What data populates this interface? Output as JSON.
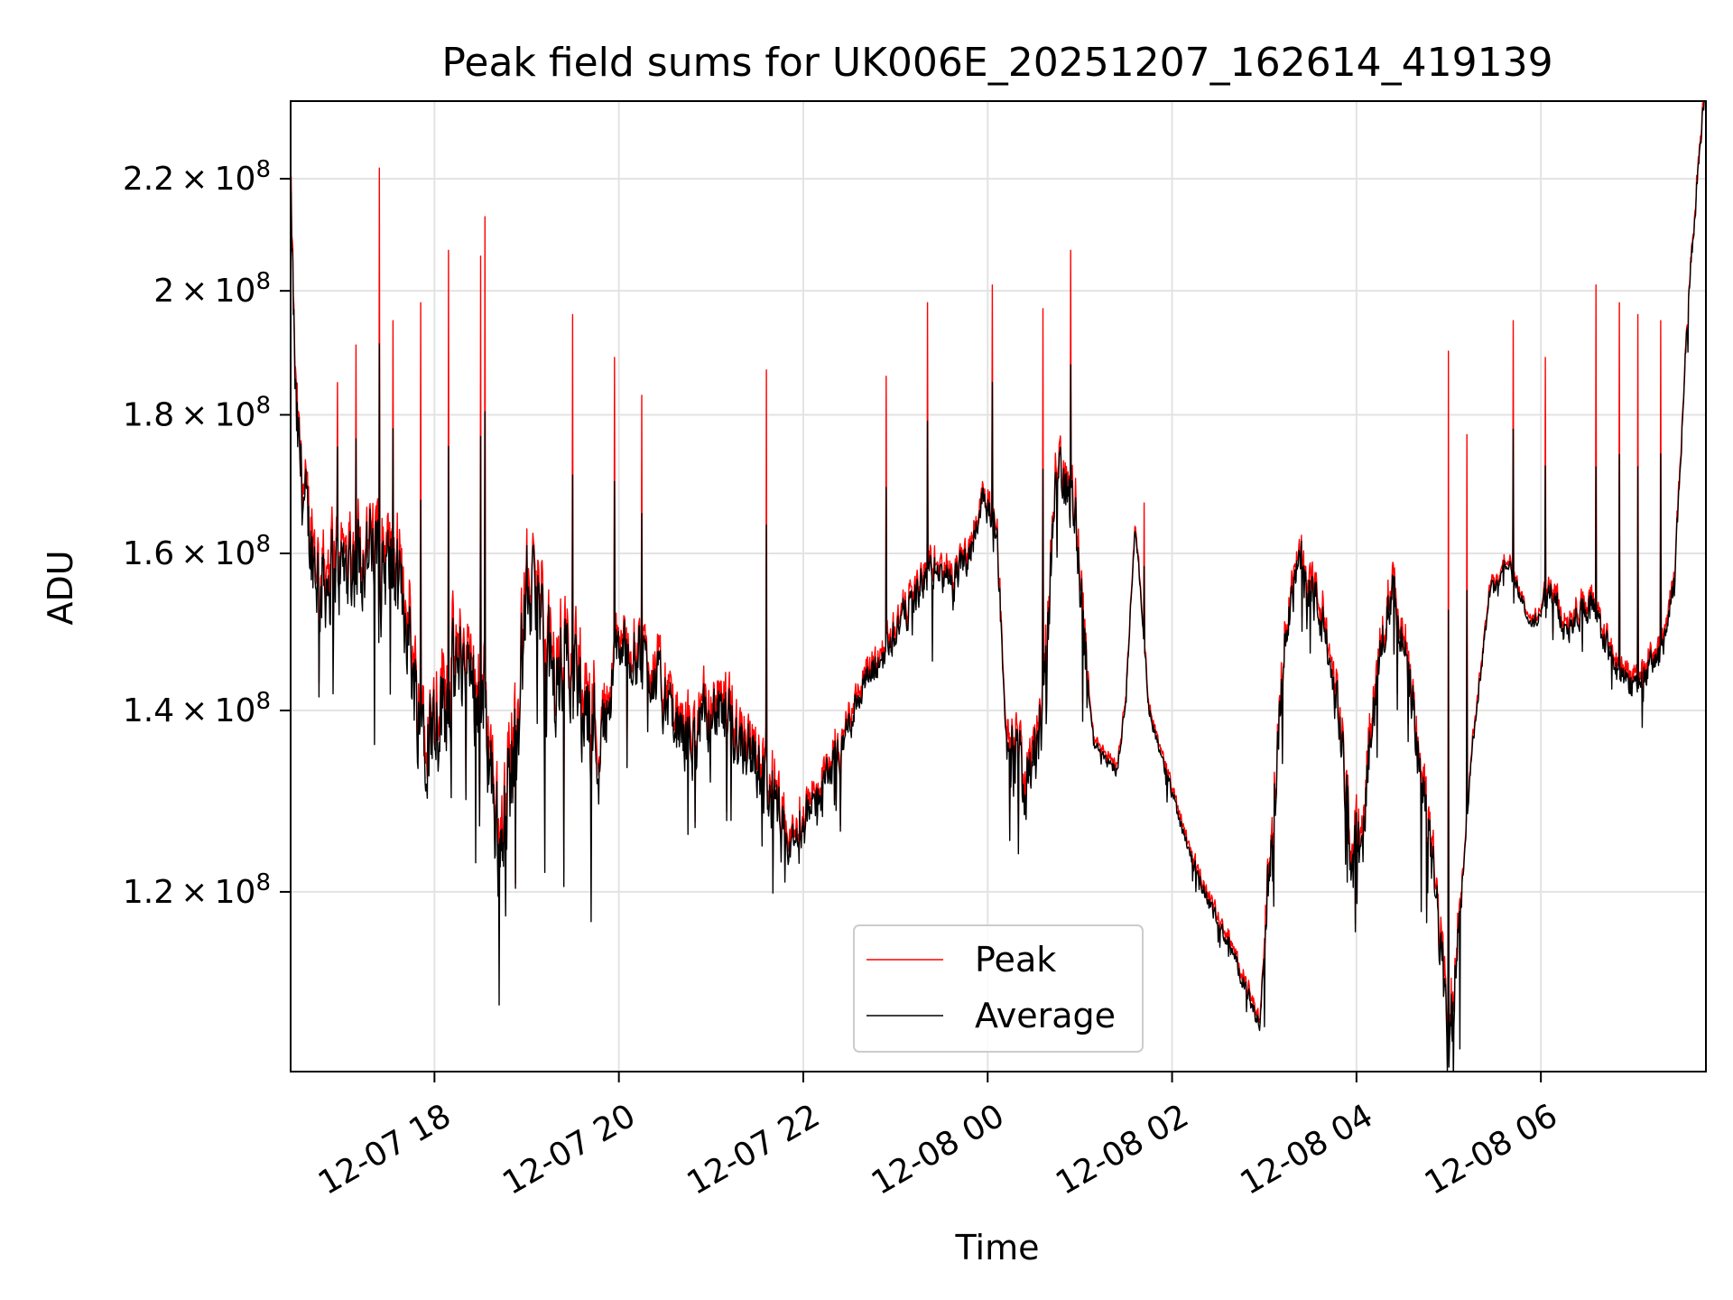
{
  "chart_data": {
    "type": "line",
    "title": "Peak field sums for UK006E_20251207_162614_419139",
    "xlabel": "Time",
    "ylabel": "ADU",
    "yscale": "log",
    "ylim": [
      103000000,
      235000000
    ],
    "xlim_hours_from_2025_12_07_00": [
      16.44,
      31.79
    ],
    "grid": true,
    "legend_location": "lower center",
    "x_ticks": [
      {
        "hour": 18,
        "label": "12-07 18"
      },
      {
        "hour": 20,
        "label": "12-07 20"
      },
      {
        "hour": 22,
        "label": "12-07 22"
      },
      {
        "hour": 24,
        "label": "12-08 00"
      },
      {
        "hour": 26,
        "label": "12-08 02"
      },
      {
        "hour": 28,
        "label": "12-08 04"
      },
      {
        "hour": 30,
        "label": "12-08 06"
      }
    ],
    "y_ticks": [
      {
        "value": 120000000,
        "mantissa": "1.2",
        "base": "10",
        "exp": "8"
      },
      {
        "value": 140000000,
        "mantissa": "1.4",
        "base": "10",
        "exp": "8"
      },
      {
        "value": 160000000,
        "mantissa": "1.6",
        "base": "10",
        "exp": "8"
      },
      {
        "value": 180000000,
        "mantissa": "1.8",
        "base": "10",
        "exp": "8"
      },
      {
        "value": 200000000,
        "mantissa": "2",
        "base": "10",
        "exp": "8"
      },
      {
        "value": 220000000,
        "mantissa": "2.2",
        "base": "10",
        "exp": "8"
      }
    ],
    "series": [
      {
        "name": "Peak",
        "color": "#ff0000"
      },
      {
        "name": "Average",
        "color": "#000000"
      }
    ],
    "average_baseline_millions": [
      [
        16.44,
        215
      ],
      [
        16.5,
        178
      ],
      [
        16.6,
        165
      ],
      [
        16.75,
        156
      ],
      [
        17.0,
        158
      ],
      [
        17.25,
        160
      ],
      [
        17.5,
        158
      ],
      [
        17.7,
        152
      ],
      [
        17.8,
        141
      ],
      [
        17.95,
        138
      ],
      [
        18.1,
        141
      ],
      [
        18.3,
        146
      ],
      [
        18.55,
        140
      ],
      [
        18.7,
        124
      ],
      [
        18.9,
        138
      ],
      [
        19.0,
        155
      ],
      [
        19.15,
        152
      ],
      [
        19.3,
        142
      ],
      [
        19.45,
        148
      ],
      [
        19.6,
        141
      ],
      [
        19.8,
        136
      ],
      [
        19.9,
        142
      ],
      [
        20.0,
        148
      ],
      [
        20.25,
        146
      ],
      [
        20.4,
        144
      ],
      [
        20.6,
        138
      ],
      [
        20.8,
        136
      ],
      [
        21.0,
        140
      ],
      [
        21.2,
        138
      ],
      [
        21.4,
        136
      ],
      [
        21.6,
        132
      ],
      [
        21.8,
        124
      ],
      [
        21.95,
        126
      ],
      [
        22.15,
        130
      ],
      [
        22.4,
        135
      ],
      [
        22.6,
        142
      ],
      [
        22.8,
        145
      ],
      [
        23.0,
        150
      ],
      [
        23.2,
        154
      ],
      [
        23.4,
        158
      ],
      [
        23.6,
        156
      ],
      [
        23.8,
        160
      ],
      [
        23.95,
        168
      ],
      [
        24.1,
        163
      ],
      [
        24.2,
        135
      ],
      [
        24.4,
        133
      ],
      [
        24.6,
        138
      ],
      [
        24.75,
        172
      ],
      [
        24.95,
        166
      ],
      [
        25.05,
        148
      ],
      [
        25.15,
        136
      ],
      [
        25.4,
        133
      ],
      [
        25.5,
        141
      ],
      [
        25.6,
        164
      ],
      [
        25.75,
        140
      ],
      [
        25.9,
        134
      ],
      [
        26.1,
        127
      ],
      [
        26.3,
        121
      ],
      [
        26.5,
        117
      ],
      [
        26.7,
        113
      ],
      [
        26.9,
        108
      ],
      [
        26.95,
        107
      ],
      [
        27.1,
        128
      ],
      [
        27.25,
        152
      ],
      [
        27.4,
        159
      ],
      [
        27.6,
        152
      ],
      [
        27.8,
        140
      ],
      [
        27.95,
        123
      ],
      [
        28.1,
        131
      ],
      [
        28.25,
        148
      ],
      [
        28.4,
        155
      ],
      [
        28.6,
        141
      ],
      [
        28.75,
        128
      ],
      [
        28.9,
        116
      ],
      [
        29.0,
        104
      ],
      [
        29.1,
        115
      ],
      [
        29.25,
        135
      ],
      [
        29.45,
        155
      ],
      [
        29.65,
        159
      ],
      [
        29.9,
        150
      ],
      [
        30.1,
        155
      ],
      [
        30.25,
        150
      ],
      [
        30.4,
        152
      ],
      [
        30.55,
        153
      ],
      [
        30.7,
        148
      ],
      [
        30.9,
        143
      ],
      [
        31.1,
        144
      ],
      [
        31.3,
        147
      ],
      [
        31.45,
        155
      ],
      [
        31.6,
        198
      ],
      [
        31.72,
        225
      ],
      [
        31.79,
        240
      ]
    ],
    "average_dips_millions": [
      [
        16.9,
        142
      ],
      [
        17.35,
        136
      ],
      [
        17.85,
        130
      ],
      [
        18.18,
        130
      ],
      [
        18.45,
        123
      ],
      [
        18.7,
        109
      ],
      [
        19.2,
        122
      ],
      [
        19.7,
        117
      ],
      [
        20.75,
        126
      ],
      [
        21.5,
        130
      ],
      [
        21.8,
        121
      ],
      [
        22.15,
        127
      ],
      [
        23.4,
        146
      ],
      [
        26.5,
        115
      ],
      [
        27.0,
        107
      ],
      [
        27.5,
        147
      ],
      [
        27.9,
        121
      ],
      [
        28.7,
        118
      ],
      [
        29.05,
        102
      ],
      [
        29.12,
        105
      ],
      [
        30.6,
        137
      ],
      [
        31.1,
        138
      ]
    ],
    "peak_spikes_millions": [
      [
        16.5,
        186
      ],
      [
        16.95,
        185
      ],
      [
        17.15,
        191
      ],
      [
        17.4,
        222
      ],
      [
        17.55,
        195
      ],
      [
        17.85,
        198
      ],
      [
        18.15,
        207
      ],
      [
        18.5,
        206
      ],
      [
        18.55,
        213
      ],
      [
        19.5,
        196
      ],
      [
        19.95,
        189
      ],
      [
        20.25,
        183
      ],
      [
        21.6,
        187
      ],
      [
        22.9,
        186
      ],
      [
        23.35,
        198
      ],
      [
        24.05,
        201
      ],
      [
        24.6,
        197
      ],
      [
        24.9,
        207
      ],
      [
        25.7,
        167
      ],
      [
        29.0,
        190
      ],
      [
        29.2,
        177
      ],
      [
        29.7,
        195
      ],
      [
        30.05,
        189
      ],
      [
        30.6,
        201
      ],
      [
        30.85,
        198
      ],
      [
        31.05,
        196
      ],
      [
        31.3,
        195
      ]
    ]
  }
}
